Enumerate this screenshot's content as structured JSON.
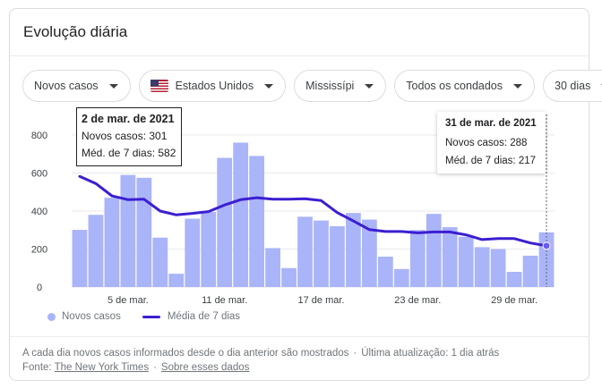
{
  "card": {
    "title": "Evolução diária"
  },
  "filters": [
    {
      "label": "Novos casos"
    },
    {
      "label": "Estados Unidos",
      "icon": "us-flag-icon"
    },
    {
      "label": "Mississípi"
    },
    {
      "label": "Todos os condados"
    },
    {
      "label": "30 dias"
    }
  ],
  "tooltip_hover": {
    "date": "2 de mar. de 2021",
    "cases_text": "Novos casos: 301",
    "avg_text": "Méd. de 7 dias: 582"
  },
  "tooltip_last": {
    "date": "31 de mar. de 2021",
    "cases_text": "Novos casos: 288",
    "avg_text": "Méd. de 7 dias: 217"
  },
  "legend": {
    "cases": "Novos casos",
    "avg": "Média de 7 dias"
  },
  "footer": {
    "note": "A cada dia novos casos informados desde o dia anterior são mostrados",
    "updated": "Última atualização: 1 dia atrás",
    "source_label": "Fonte:",
    "source_link": "The New York Times",
    "about_link": "Sobre esses dados"
  },
  "colors": {
    "bars": "#aab4f8",
    "avg_line": "#3b1fd1",
    "grid": "#e8eaed",
    "axis_text": "#3c4043"
  },
  "chart_data": {
    "type": "bar",
    "x": [
      "2021-03-02",
      "2021-03-03",
      "2021-03-04",
      "2021-03-05",
      "2021-03-06",
      "2021-03-07",
      "2021-03-08",
      "2021-03-09",
      "2021-03-10",
      "2021-03-11",
      "2021-03-12",
      "2021-03-13",
      "2021-03-14",
      "2021-03-15",
      "2021-03-16",
      "2021-03-17",
      "2021-03-18",
      "2021-03-19",
      "2021-03-20",
      "2021-03-21",
      "2021-03-22",
      "2021-03-23",
      "2021-03-24",
      "2021-03-25",
      "2021-03-26",
      "2021-03-27",
      "2021-03-28",
      "2021-03-29",
      "2021-03-30",
      "2021-03-31"
    ],
    "xticks": [
      {
        "index": 3,
        "label": "5 de mar."
      },
      {
        "index": 9,
        "label": "11 de mar."
      },
      {
        "index": 15,
        "label": "17 de mar."
      },
      {
        "index": 21,
        "label": "23 de mar."
      },
      {
        "index": 27,
        "label": "29 de mar."
      }
    ],
    "series": [
      {
        "name": "Novos casos",
        "type": "bar",
        "values": [
          301,
          380,
          470,
          590,
          575,
          260,
          70,
          360,
          395,
          680,
          760,
          690,
          205,
          100,
          370,
          350,
          320,
          390,
          355,
          160,
          95,
          300,
          385,
          315,
          265,
          210,
          200,
          80,
          165,
          288
        ]
      },
      {
        "name": "Média de 7 dias",
        "type": "line",
        "values": [
          582,
          545,
          480,
          460,
          462,
          400,
          380,
          388,
          397,
          432,
          460,
          470,
          462,
          462,
          465,
          455,
          392,
          348,
          302,
          292,
          292,
          285,
          290,
          290,
          275,
          250,
          255,
          255,
          232,
          217
        ]
      }
    ],
    "yticks": [
      0,
      200,
      400,
      600,
      800
    ],
    "ylim": [
      0,
      800
    ],
    "grid": true,
    "legend_position": "bottom-left"
  }
}
